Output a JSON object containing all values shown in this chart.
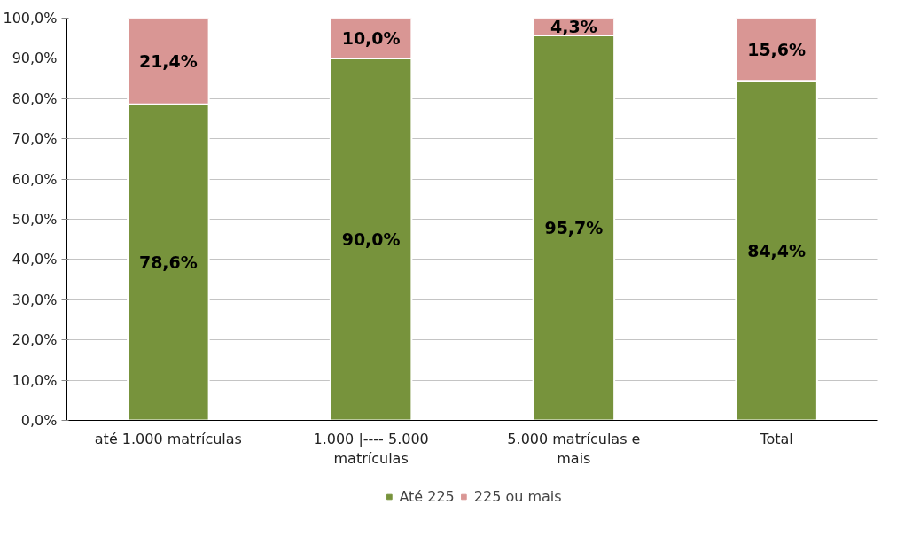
{
  "chart_data": {
    "type": "bar",
    "stacked": true,
    "categories": [
      "até 1.000 matrículas",
      "1.000 |---- 5.000 matrículas",
      "5.000 matrículas e mais",
      "Total"
    ],
    "series": [
      {
        "name": "Até 225",
        "color": "#77933c",
        "values": [
          78.6,
          90.0,
          95.7,
          84.4
        ],
        "value_labels": [
          "78,6%",
          "90,0%",
          "95,7%",
          "84,4%"
        ]
      },
      {
        "name": "225 ou mais",
        "color": "#d99694",
        "values": [
          21.4,
          10.0,
          4.3,
          15.6
        ],
        "value_labels": [
          "21,4%",
          "10,0%",
          "4,3%",
          "15,6%"
        ]
      }
    ],
    "ylim": [
      0,
      100
    ],
    "yticks": [
      {
        "value": 0,
        "label": "0,0%"
      },
      {
        "value": 10,
        "label": "10,0%"
      },
      {
        "value": 20,
        "label": "20,0%"
      },
      {
        "value": 30,
        "label": "30,0%"
      },
      {
        "value": 40,
        "label": "40,0%"
      },
      {
        "value": 50,
        "label": "50,0%"
      },
      {
        "value": 60,
        "label": "60,0%"
      },
      {
        "value": 70,
        "label": "70,0%"
      },
      {
        "value": 80,
        "label": "80,0%"
      },
      {
        "value": 90,
        "label": "90,0%"
      },
      {
        "value": 100,
        "label": "100,0%"
      }
    ],
    "grid": "y",
    "legend": "bottom"
  }
}
